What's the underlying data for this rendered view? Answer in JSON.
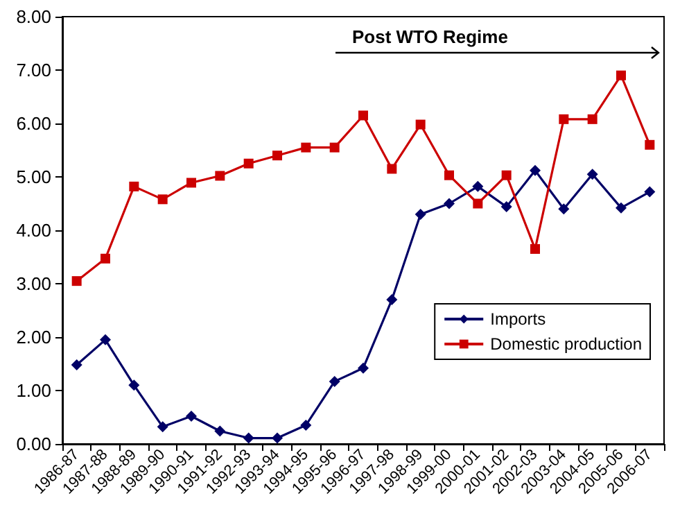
{
  "chart_data": {
    "type": "line",
    "categories": [
      "1986-87",
      "1987-88",
      "1988-89",
      "1989-90",
      "1990-91",
      "1991-92",
      "1992-93",
      "1993-94",
      "1994-95",
      "1995-96",
      "1996-97",
      "1997-98",
      "1998-99",
      "1999-00",
      "2000-01",
      "2001-02",
      "2002-03",
      "2003-04",
      "2004-05",
      "2005-06",
      "2006-07"
    ],
    "series": [
      {
        "name": "Imports",
        "color": "#000066",
        "marker": "diamond",
        "values": [
          1.48,
          1.95,
          1.1,
          0.32,
          0.52,
          0.24,
          0.11,
          0.11,
          0.35,
          1.17,
          1.42,
          2.7,
          4.3,
          4.5,
          4.82,
          4.44,
          5.12,
          4.4,
          5.05,
          4.42,
          4.72
        ]
      },
      {
        "name": "Domestic production",
        "color": "#cc0000",
        "marker": "square",
        "values": [
          3.05,
          3.47,
          4.82,
          4.58,
          4.89,
          5.02,
          5.25,
          5.4,
          5.55,
          5.55,
          6.15,
          5.15,
          5.98,
          5.03,
          4.5,
          5.03,
          3.65,
          6.08,
          6.08,
          6.9,
          5.6
        ]
      }
    ],
    "ylim": [
      0,
      8
    ],
    "yticks": [
      {
        "value": 0,
        "label": "0.00"
      },
      {
        "value": 1,
        "label": "1.00"
      },
      {
        "value": 2,
        "label": "2.00"
      },
      {
        "value": 3,
        "label": "3.00"
      },
      {
        "value": 4,
        "label": "4.00"
      },
      {
        "value": 5,
        "label": "5.00"
      },
      {
        "value": 6,
        "label": "6.00"
      },
      {
        "value": 7,
        "label": "7.00"
      },
      {
        "value": 8,
        "label": "8.00"
      }
    ],
    "annotations": [
      "Post WTO Regime"
    ],
    "grid": false,
    "legend": "bottom right",
    "line_style": "solid"
  }
}
